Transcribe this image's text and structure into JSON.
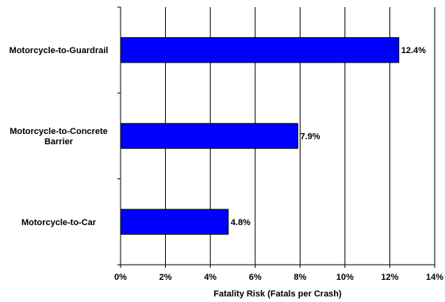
{
  "chart_data": {
    "type": "bar",
    "orientation": "horizontal",
    "categories": [
      [
        "Motorcycle-to-Guardrail"
      ],
      [
        "Motorcycle-to-Concrete",
        "Barrier"
      ],
      [
        "Motorcycle-to-Car"
      ]
    ],
    "values": [
      12.4,
      7.9,
      4.8
    ],
    "data_labels": [
      "12.4%",
      "7.9%",
      "4.8%"
    ],
    "xlabel": "Fatality Risk (Fatals per Crash)",
    "ylabel": "",
    "xlim": [
      0,
      14
    ],
    "xticks": [
      0,
      2,
      4,
      6,
      8,
      10,
      12,
      14
    ],
    "xtick_labels": [
      "0%",
      "2%",
      "4%",
      "6%",
      "8%",
      "10%",
      "12%",
      "14%"
    ],
    "grid": "vertical",
    "legend": "none",
    "bar_color": "#0000FF"
  }
}
